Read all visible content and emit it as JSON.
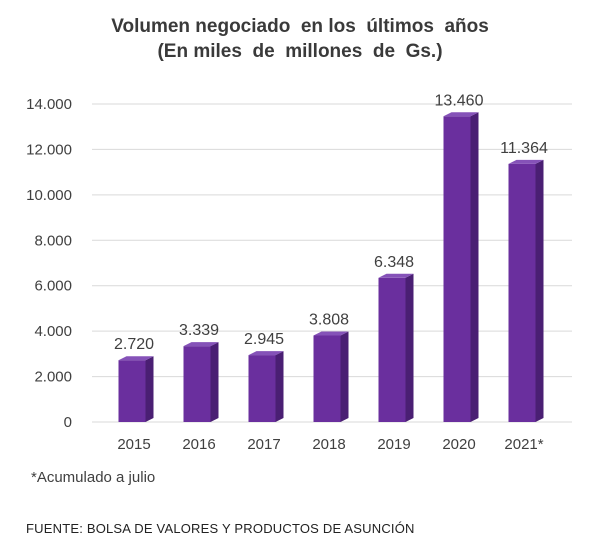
{
  "chart_data": {
    "type": "bar",
    "title": "Volumen negociado  en los  últimos  años",
    "subtitle": "(En miles  de  millones  de  Gs.)",
    "categories": [
      "2015",
      "2016",
      "2017",
      "2018",
      "2019",
      "2020",
      "2021*"
    ],
    "values": [
      2720,
      3339,
      2945,
      3808,
      6348,
      13460,
      11364
    ],
    "value_labels": [
      "2.720",
      "3.339",
      "2.945",
      "3.808",
      "6.348",
      "13.460",
      "11.364"
    ],
    "ylim": [
      0,
      14000
    ],
    "yticks": [
      0,
      2000,
      4000,
      6000,
      8000,
      10000,
      12000,
      14000
    ],
    "ytick_labels": [
      "0",
      "2.000",
      "4.000",
      "6.000",
      "8.000",
      "10.000",
      "12.000",
      "14.000"
    ],
    "xlabel": "",
    "ylabel": "",
    "grid": true,
    "legend": "none",
    "bar_color": "#6a2f9e",
    "bar_side_color": "#4a1f73",
    "bar_top_color": "#8552b8"
  },
  "footnote": "*Acumulado a julio",
  "source": "FUENTE: BOLSA DE VALORES Y PRODUCTOS DE ASUNCIÓN"
}
